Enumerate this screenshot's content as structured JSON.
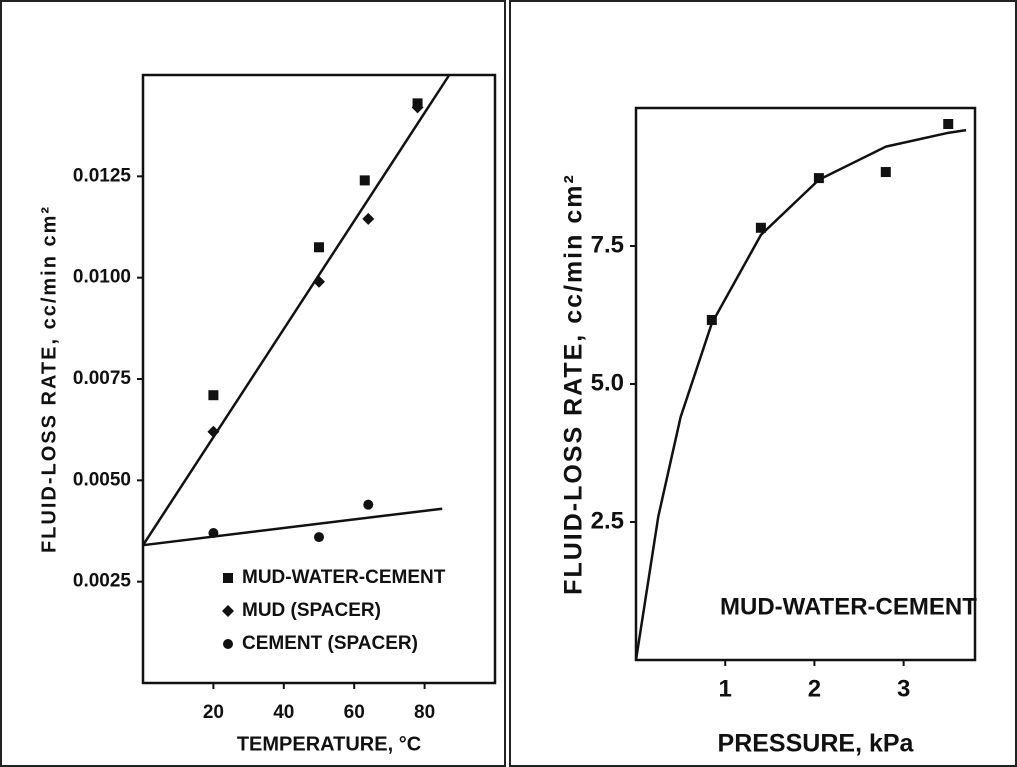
{
  "chart_data": [
    {
      "type": "scatter",
      "x_label": "TEMPERATURE, °C",
      "y_label": "FLUID-LOSS RATE, cc/min cm²",
      "xlim": [
        0,
        100
      ],
      "xticks": [
        20,
        40,
        60,
        80
      ],
      "ylim": [
        0,
        0.015
      ],
      "yticks": [
        0.0025,
        {
          "value": 0.005,
          "label": "0.0050"
        },
        0.0075,
        {
          "value": 0.01,
          "label": "0.0100"
        },
        0.0125
      ],
      "legend": "lower right",
      "legend_markers": true,
      "series": [
        {
          "name": "MUD-WATER-CEMENT",
          "marker": "square",
          "color": "#111111",
          "x": [
            20,
            50,
            63,
            78
          ],
          "values": [
            0.0071,
            0.01075,
            0.0124,
            0.0143
          ]
        },
        {
          "name": "MUD (SPACER)",
          "marker": "diamond",
          "color": "#111111",
          "x": [
            20,
            50,
            64,
            78
          ],
          "values": [
            0.0062,
            0.0099,
            0.01145,
            0.0142
          ]
        },
        {
          "name": "CEMENT (SPACER)",
          "marker": "circle",
          "color": "#111111",
          "x": [
            20,
            50,
            64
          ],
          "values": [
            0.0037,
            0.0036,
            0.0044
          ]
        }
      ],
      "lines": [
        {
          "x": [
            0,
            87
          ],
          "values": [
            0.0034,
            0.015
          ]
        },
        {
          "x": [
            0,
            85
          ],
          "values": [
            0.0034,
            0.0043
          ]
        }
      ]
    },
    {
      "type": "scatter",
      "x_label": "PRESSURE, kPa",
      "y_label": "FLUID-LOSS RATE, cc/min cm²",
      "xlim": [
        0,
        3.8
      ],
      "xticks": [
        1,
        2,
        3
      ],
      "ylim": [
        0,
        10
      ],
      "yticks": [
        2.5,
        {
          "value": 5,
          "label": "5.0"
        },
        7.5
      ],
      "legend": "lower right",
      "legend_markers": false,
      "series": [
        {
          "name": "MUD-WATER-CEMENT",
          "marker": "square",
          "color": "#111111",
          "x": [
            0.85,
            1.4,
            2.05,
            2.8,
            3.5
          ],
          "values": [
            6.16,
            7.83,
            8.73,
            8.84,
            9.71
          ]
        }
      ],
      "lines": [
        {
          "x": [
            0,
            0.25,
            0.5,
            0.85,
            1.4,
            2.05,
            2.8,
            3.5,
            3.7
          ],
          "values": [
            0,
            2.6,
            4.4,
            6.1,
            7.7,
            8.7,
            9.3,
            9.55,
            9.6
          ]
        }
      ]
    }
  ]
}
